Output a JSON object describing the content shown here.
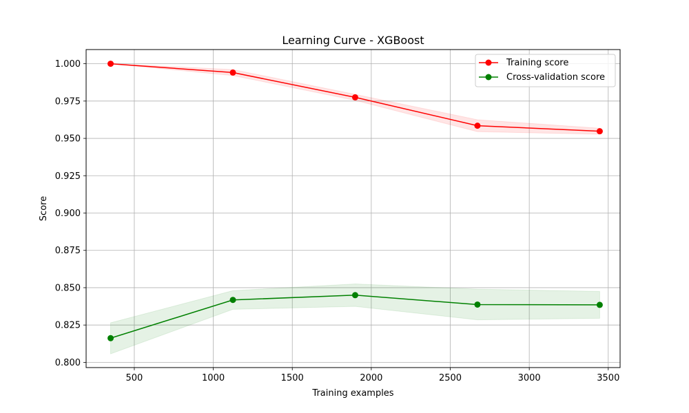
{
  "chart_data": {
    "type": "line",
    "title": "Learning Curve - XGBoost",
    "xlabel": "Training examples",
    "ylabel": "Score",
    "xlim": [
      195,
      3575
    ],
    "ylim": [
      0.7965,
      1.0095
    ],
    "xticks": [
      500,
      1000,
      1500,
      2000,
      2500,
      3000,
      3500
    ],
    "yticks": [
      0.8,
      0.825,
      0.85,
      0.875,
      0.9,
      0.925,
      0.95,
      0.975,
      1.0
    ],
    "xtick_labels": [
      "500",
      "1000",
      "1500",
      "2000",
      "2500",
      "3000",
      "3500"
    ],
    "ytick_labels": [
      "0.800",
      "0.825",
      "0.850",
      "0.875",
      "0.900",
      "0.925",
      "0.950",
      "0.975",
      "1.000"
    ],
    "grid": true,
    "legend_position": "upper right",
    "x": [
      350,
      1124,
      1898,
      2672,
      3446
    ],
    "series": [
      {
        "name": "Training score",
        "color": "#ff0000",
        "values": [
          1.0,
          0.9941,
          0.9775,
          0.9585,
          0.9548
        ],
        "band_lower": [
          1.0,
          0.9921,
          0.9755,
          0.9545,
          0.9528
        ],
        "band_upper": [
          1.0,
          0.9961,
          0.9795,
          0.9625,
          0.9568
        ]
      },
      {
        "name": "Cross-validation score",
        "color": "#008000",
        "values": [
          0.8162,
          0.8418,
          0.845,
          0.8387,
          0.8385
        ],
        "band_lower": [
          0.8057,
          0.8355,
          0.8375,
          0.8285,
          0.8295
        ],
        "band_upper": [
          0.8265,
          0.848,
          0.8525,
          0.849,
          0.8475
        ]
      }
    ]
  }
}
